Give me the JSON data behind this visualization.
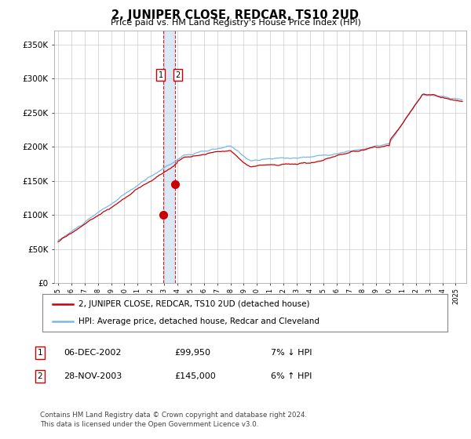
{
  "title": "2, JUNIPER CLOSE, REDCAR, TS10 2UD",
  "subtitle": "Price paid vs. HM Land Registry's House Price Index (HPI)",
  "transactions": [
    {
      "date": "2002-12-06",
      "price": 99950,
      "label": "1",
      "hpi_note": "7% ↓ HPI"
    },
    {
      "date": "2003-11-28",
      "price": 145000,
      "label": "2",
      "hpi_note": "6% ↑ HPI"
    }
  ],
  "legend_entries": [
    "2, JUNIPER CLOSE, REDCAR, TS10 2UD (detached house)",
    "HPI: Average price, detached house, Redcar and Cleveland"
  ],
  "table_rows": [
    [
      "1",
      "06-DEC-2002",
      "£99,950",
      "7% ↓ HPI"
    ],
    [
      "2",
      "28-NOV-2003",
      "£145,000",
      "6% ↑ HPI"
    ]
  ],
  "footer": "Contains HM Land Registry data © Crown copyright and database right 2024.\nThis data is licensed under the Open Government Licence v3.0.",
  "hpi_line_color": "#7ab8e8",
  "price_line_color": "#cc0000",
  "transaction_color": "#cc0000",
  "dashed_line_color": "#cc0000",
  "shade_color": "#cce0f5",
  "ylim": [
    0,
    370000
  ],
  "yticks": [
    0,
    50000,
    100000,
    150000,
    200000,
    250000,
    300000,
    350000
  ],
  "ytick_labels": [
    "£0",
    "£50K",
    "£100K",
    "£150K",
    "£200K",
    "£250K",
    "£300K",
    "£350K"
  ],
  "x_start_year": 1995,
  "x_end_year": 2025,
  "background_color": "#ffffff",
  "grid_color": "#cccccc"
}
